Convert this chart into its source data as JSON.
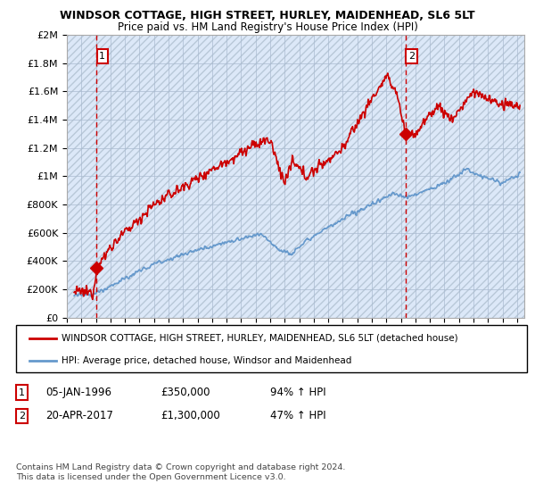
{
  "title": "WINDSOR COTTAGE, HIGH STREET, HURLEY, MAIDENHEAD, SL6 5LT",
  "subtitle": "Price paid vs. HM Land Registry's House Price Index (HPI)",
  "ylabel_ticks": [
    "£0",
    "£200K",
    "£400K",
    "£600K",
    "£800K",
    "£1M",
    "£1.2M",
    "£1.4M",
    "£1.6M",
    "£1.8M",
    "£2M"
  ],
  "ytick_values": [
    0,
    200000,
    400000,
    600000,
    800000,
    1000000,
    1200000,
    1400000,
    1600000,
    1800000,
    2000000
  ],
  "ylim": [
    0,
    2000000
  ],
  "xlim_start": 1994.0,
  "xlim_end": 2025.5,
  "point1_x": 1996.03,
  "point1_y": 350000,
  "point1_label": "1",
  "point2_x": 2017.31,
  "point2_y": 1300000,
  "point2_label": "2",
  "legend_line1": "WINDSOR COTTAGE, HIGH STREET, HURLEY, MAIDENHEAD, SL6 5LT (detached house)",
  "legend_line2": "HPI: Average price, detached house, Windsor and Maidenhead",
  "annotation1": "05-JAN-1996",
  "annotation1_price": "£350,000",
  "annotation1_hpi": "94% ↑ HPI",
  "annotation2": "20-APR-2017",
  "annotation2_price": "£1,300,000",
  "annotation2_hpi": "47% ↑ HPI",
  "footer": "Contains HM Land Registry data © Crown copyright and database right 2024.\nThis data is licensed under the Open Government Licence v3.0.",
  "red_line_color": "#cc0000",
  "blue_line_color": "#6699cc",
  "bg_color": "#dce8f8",
  "hatch_color": "#b8c8d8",
  "grid_color": "#aabbd0"
}
